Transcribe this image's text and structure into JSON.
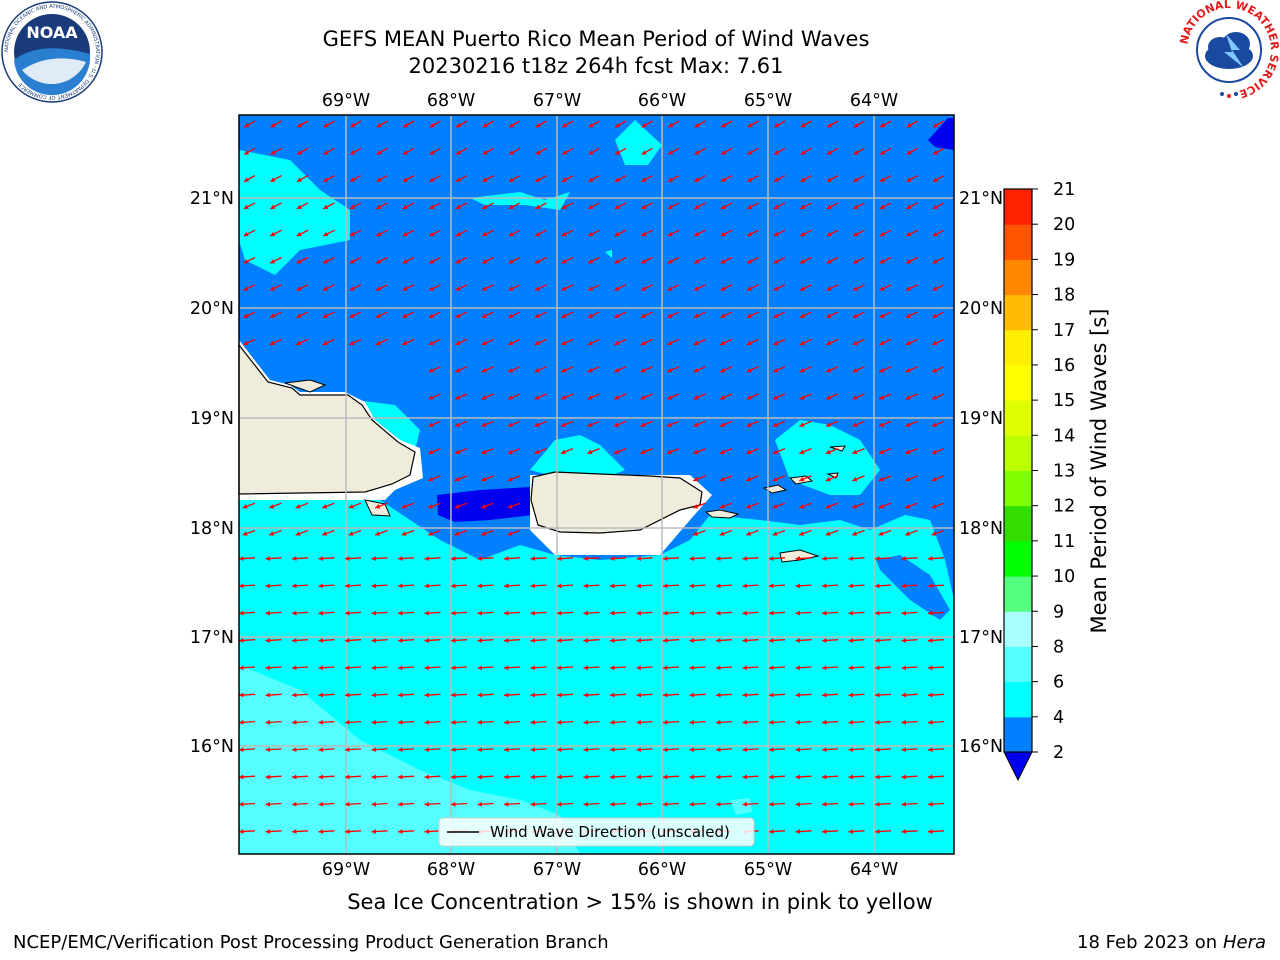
{
  "header": {
    "title_line1": "GEFS MEAN Puerto Rico Mean Period of Wind Waves",
    "title_line2": "20230216 t18z 264h fcst   Max: 7.61"
  },
  "logos": {
    "left_text": "NOAA",
    "left_ring_text": "NATIONAL OCEANIC AND ATMOSPHERIC ADMINISTRATION · U.S. DEPARTMENT OF COMMERCE",
    "right_ring_text": "NATIONAL WEATHER SERVICE"
  },
  "map": {
    "lon_labels": [
      "69°W",
      "68°W",
      "67°W",
      "66°W",
      "65°W",
      "64°W"
    ],
    "lat_labels": [
      "21°N",
      "20°N",
      "19°N",
      "18°N",
      "17°N",
      "16°N"
    ],
    "legend_label": "Wind Wave Direction (unscaled)",
    "colors": {
      "ocean_low": "#0080ff",
      "ocean_mid": "#00ffff",
      "ocean_high": "#55ffff",
      "ocean_min": "#0000ee",
      "land": "#efecdc",
      "arrow": "#ff0000",
      "grid": "#bbbbbb"
    }
  },
  "colorbar": {
    "label": "Mean Period of Wind Waves [s]",
    "ticks": [
      "2",
      "4",
      "6",
      "8",
      "9",
      "10",
      "11",
      "12",
      "13",
      "14",
      "15",
      "16",
      "17",
      "18",
      "19",
      "20",
      "21"
    ],
    "colors": [
      "#0080ff",
      "#00ffff",
      "#55ffff",
      "#aaffff",
      "#55ff80",
      "#00ff00",
      "#33dd00",
      "#80ff00",
      "#bbff00",
      "#ddff00",
      "#ffff00",
      "#ffee00",
      "#ffbb00",
      "#ff8800",
      "#ff5500",
      "#ff2200",
      "#ff0000"
    ],
    "under_color": "#0000ee"
  },
  "note": "Sea Ice Concentration > 15% is shown in pink to yellow",
  "footer": {
    "left": "NCEP/EMC/Verification Post Processing Product Generation Branch",
    "right_date": "18 Feb 2023 on",
    "right_host": "Hera"
  }
}
